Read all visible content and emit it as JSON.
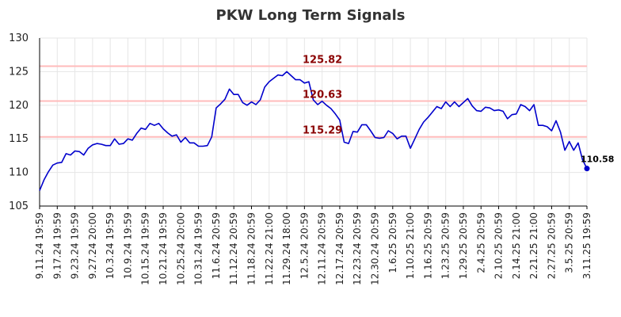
{
  "chart_data": {
    "type": "line",
    "title": "PKW Long Term Signals",
    "xlabel": "",
    "ylabel": "",
    "ylim": [
      105,
      130
    ],
    "yticks": [
      "105",
      "110",
      "115",
      "120",
      "125",
      "130"
    ],
    "x_tick_labels": [
      "9.11.24 19:59",
      "9.17.24 19:59",
      "9.23.24 19:59",
      "9.27.24 20:00",
      "10.3.24 19:59",
      "10.9.24 19:59",
      "10.15.24 19:59",
      "10.21.24 19:59",
      "10.25.24 20:00",
      "10.31.24 19:59",
      "11.6.24 20:59",
      "11.12.24 20:59",
      "11.18.24 20:59",
      "11.22.24 21:00",
      "11.29.24 18:00",
      "12.5.24 20:59",
      "12.11.24 20:59",
      "12.17.24 20:59",
      "12.23.24 20:59",
      "12.30.24 20:59",
      "1.6.25 20:59",
      "1.10.25 21:00",
      "1.16.25 20:59",
      "1.23.25 20:59",
      "1.29.25 20:59",
      "2.4.25 20:59",
      "2.10.25 20:59",
      "2.14.25 21:00",
      "2.21.25 21:00",
      "2.27.25 20:59",
      "3.5.25 20:59",
      "3.11.25 19:59"
    ],
    "grid": true,
    "series": [
      {
        "color": "#0000cc",
        "values": [
          107.3,
          108.9,
          110.1,
          111.1,
          111.4,
          111.5,
          112.8,
          112.6,
          113.2,
          113.1,
          112.6,
          113.6,
          114.1,
          114.3,
          114.2,
          114.0,
          114.0,
          115.0,
          114.2,
          114.3,
          115.0,
          114.8,
          115.8,
          116.6,
          116.4,
          117.3,
          117.0,
          117.3,
          116.5,
          115.9,
          115.4,
          115.6,
          114.5,
          115.2,
          114.4,
          114.4,
          113.9,
          113.9,
          114.0,
          115.3,
          119.6,
          120.2,
          120.9,
          122.4,
          121.6,
          121.6,
          120.4,
          120.0,
          120.5,
          120.1,
          120.8,
          122.7,
          123.5,
          124.0,
          124.5,
          124.4,
          125.0,
          124.4,
          123.8,
          123.8,
          123.3,
          123.5,
          120.8,
          120.1,
          120.6,
          120.0,
          119.5,
          118.7,
          117.8,
          114.5,
          114.3,
          116.1,
          116.0,
          117.1,
          117.1,
          116.2,
          115.2,
          115.1,
          115.2,
          116.2,
          115.8,
          115.0,
          115.4,
          115.4,
          113.6,
          115.0,
          116.4,
          117.5,
          118.2,
          119.0,
          119.8,
          119.5,
          120.5,
          119.8,
          120.5,
          119.8,
          120.4,
          121.0,
          119.9,
          119.2,
          119.1,
          119.7,
          119.6,
          119.2,
          119.3,
          119.1,
          118.0,
          118.6,
          118.7,
          120.1,
          119.8,
          119.2,
          120.1,
          117.0,
          117.0,
          116.8,
          116.2,
          117.7,
          116.0,
          113.3,
          114.6,
          113.3,
          114.4,
          111.9,
          110.58
        ]
      }
    ],
    "levels": [
      {
        "value": 125.82,
        "label": "125.82"
      },
      {
        "value": 120.63,
        "label": "120.63"
      },
      {
        "value": 115.29,
        "label": "115.29"
      }
    ],
    "last_value_label": "110.58",
    "colors": {
      "line": "#0000cc",
      "level_line": "#ffbbbb",
      "level_label": "#8b0000",
      "grid": "#e6e6e6",
      "axis": "#000000"
    }
  }
}
